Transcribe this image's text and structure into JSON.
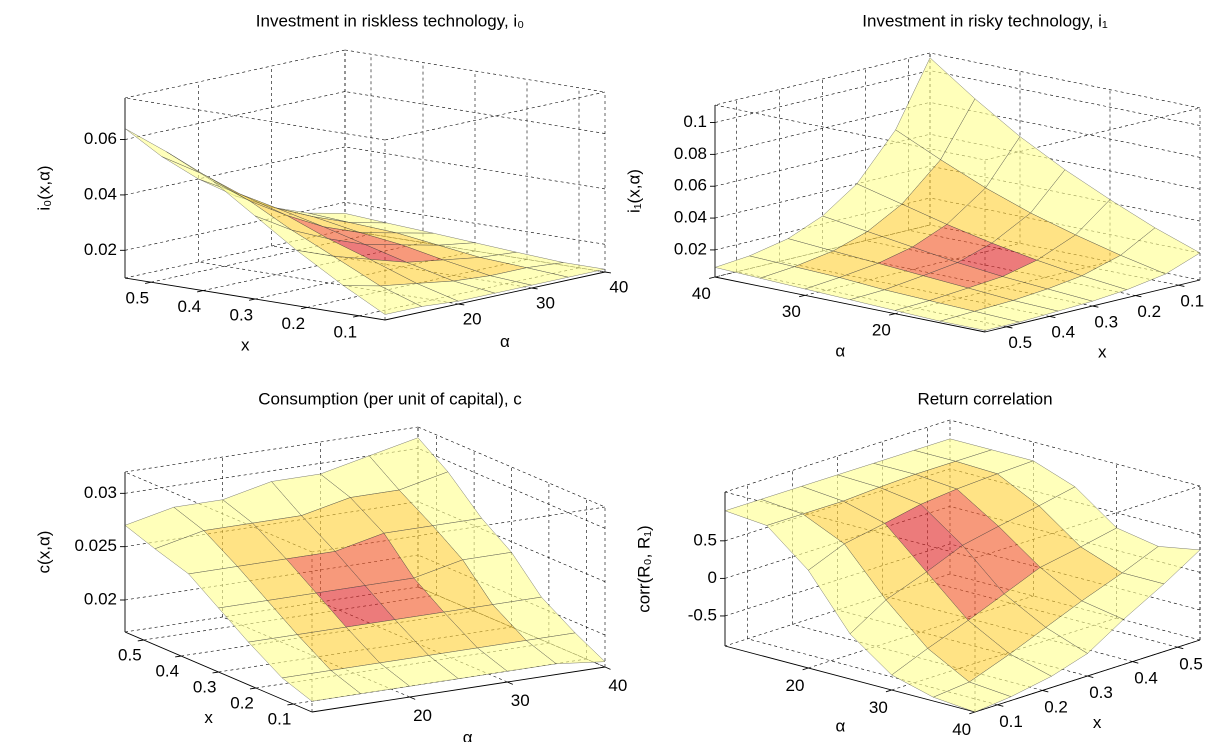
{
  "chart_data": [
    {
      "type": "surface",
      "title": "Investment in riskless technology, i₀",
      "xlabel": "x",
      "ylabel": "α",
      "zlabel": "i₀(x,α)",
      "x": [
        0.05,
        0.13,
        0.22,
        0.3,
        0.38,
        0.47,
        0.55
      ],
      "y": [
        10,
        15,
        20,
        25,
        30,
        35,
        40
      ],
      "z": [
        [
          0.012,
          0.02,
          0.03,
          0.04,
          0.05,
          0.058,
          0.064
        ],
        [
          0.012,
          0.017,
          0.025,
          0.032,
          0.04,
          0.047,
          0.051
        ],
        [
          0.011,
          0.015,
          0.021,
          0.026,
          0.032,
          0.037,
          0.04
        ],
        [
          0.011,
          0.013,
          0.017,
          0.021,
          0.025,
          0.029,
          0.031
        ],
        [
          0.011,
          0.012,
          0.015,
          0.018,
          0.02,
          0.023,
          0.024
        ],
        [
          0.011,
          0.012,
          0.013,
          0.015,
          0.017,
          0.018,
          0.019
        ],
        [
          0.011,
          0.011,
          0.012,
          0.013,
          0.014,
          0.015,
          0.016
        ]
      ],
      "xlim": [
        0.05,
        0.55
      ],
      "ylim": [
        10,
        40
      ],
      "zlim": [
        0.01,
        0.075
      ],
      "xticks": [
        0.1,
        0.2,
        0.3,
        0.4,
        0.5
      ],
      "yticks": [
        20,
        30,
        40
      ],
      "zticks": [
        0.02,
        0.04,
        0.06
      ],
      "grid": true,
      "colors": [
        "#e02a2a",
        "#f25a2a",
        "#ff9a30",
        "#ffd23a",
        "#fff060",
        "#ffff90"
      ]
    },
    {
      "type": "surface",
      "title": "Investment in risky technology, i₁",
      "xlabel": "x",
      "ylabel": "α",
      "zlabel": "i₁(x,α)",
      "x": [
        0.05,
        0.13,
        0.22,
        0.3,
        0.38,
        0.47,
        0.55
      ],
      "y": [
        10,
        15,
        20,
        25,
        30,
        35,
        40
      ],
      "z": [
        [
          0.02,
          0.012,
          0.008,
          0.006,
          0.005,
          0.004,
          0.004
        ],
        [
          0.03,
          0.018,
          0.011,
          0.008,
          0.006,
          0.005,
          0.004
        ],
        [
          0.042,
          0.025,
          0.015,
          0.01,
          0.008,
          0.006,
          0.005
        ],
        [
          0.055,
          0.033,
          0.02,
          0.013,
          0.01,
          0.007,
          0.006
        ],
        [
          0.07,
          0.043,
          0.026,
          0.017,
          0.012,
          0.009,
          0.007
        ],
        [
          0.088,
          0.055,
          0.033,
          0.021,
          0.014,
          0.01,
          0.008
        ],
        [
          0.108,
          0.068,
          0.04,
          0.025,
          0.016,
          0.011,
          0.009
        ]
      ],
      "xlim": [
        0.05,
        0.55
      ],
      "ylim": [
        10,
        40
      ],
      "zlim": [
        0.003,
        0.111
      ],
      "xticks": [
        0.1,
        0.2,
        0.3,
        0.4,
        0.5
      ],
      "yticks": [
        20,
        30,
        40
      ],
      "zticks": [
        0.02,
        0.04,
        0.06,
        0.08,
        0.1
      ],
      "grid": true,
      "colors": [
        "#e02a2a",
        "#f25a2a",
        "#ff9a30",
        "#ffd23a",
        "#fff060",
        "#ffff90"
      ]
    },
    {
      "type": "surface",
      "title": "Consumption (per unit of capital), c",
      "xlabel": "x",
      "ylabel": "α",
      "zlabel": "c(x,α)",
      "x": [
        0.05,
        0.13,
        0.22,
        0.3,
        0.38,
        0.47,
        0.55
      ],
      "y": [
        10,
        15,
        20,
        25,
        30,
        35,
        40
      ],
      "z": [
        [
          0.018,
          0.019,
          0.021,
          0.023,
          0.025,
          0.026,
          0.027
        ],
        [
          0.018,
          0.019,
          0.021,
          0.023,
          0.025,
          0.027,
          0.028
        ],
        [
          0.018,
          0.019,
          0.021,
          0.023,
          0.025,
          0.027,
          0.028
        ],
        [
          0.018,
          0.019,
          0.021,
          0.023,
          0.025,
          0.027,
          0.029
        ],
        [
          0.018,
          0.019,
          0.021,
          0.023,
          0.026,
          0.028,
          0.029
        ],
        [
          0.018,
          0.019,
          0.021,
          0.024,
          0.026,
          0.028,
          0.03
        ],
        [
          0.0175,
          0.019,
          0.021,
          0.024,
          0.026,
          0.029,
          0.031
        ]
      ],
      "xlim": [
        0.05,
        0.55
      ],
      "ylim": [
        10,
        40
      ],
      "zlim": [
        0.017,
        0.032
      ],
      "xticks": [
        0.1,
        0.2,
        0.3,
        0.4,
        0.5
      ],
      "yticks": [
        20,
        30,
        40
      ],
      "zticks": [
        0.02,
        0.025,
        0.03
      ],
      "grid": true,
      "colors": [
        "#e02a2a",
        "#f25a2a",
        "#ff9a30",
        "#ffd23a",
        "#fff060",
        "#ffff90"
      ]
    },
    {
      "type": "surface",
      "title": "Return correlation",
      "xlabel": "x",
      "ylabel": "α",
      "zlabel": "corr(R₀, R₁)",
      "x": [
        0.05,
        0.13,
        0.22,
        0.3,
        0.38,
        0.47,
        0.55
      ],
      "y": [
        10,
        15,
        20,
        25,
        30,
        35,
        40
      ],
      "z": [
        [
          0.9,
          0.9,
          0.9,
          0.9,
          0.9,
          0.9,
          0.9
        ],
        [
          0.85,
          0.85,
          0.85,
          0.88,
          0.9,
          0.9,
          0.9
        ],
        [
          0.4,
          0.6,
          0.7,
          0.8,
          0.85,
          0.88,
          0.9
        ],
        [
          -0.3,
          0,
          0.2,
          0.4,
          0.5,
          0.6,
          0.7
        ],
        [
          -0.7,
          -0.5,
          -0.3,
          -0.1,
          0.1,
          0.2,
          0.3
        ],
        [
          -0.85,
          -0.8,
          -0.6,
          -0.4,
          -0.2,
          0,
          0.2
        ],
        [
          -0.9,
          -0.85,
          -0.75,
          -0.6,
          -0.3,
          0,
          0.3
        ]
      ],
      "xlim": [
        0.05,
        0.55
      ],
      "ylim": [
        10,
        40
      ],
      "zlim": [
        -0.9,
        1.15
      ],
      "xticks": [
        0.1,
        0.2,
        0.3,
        0.4,
        0.5
      ],
      "yticks": [
        20,
        30,
        40
      ],
      "zticks": [
        -0.5,
        0,
        0.5
      ],
      "grid": true,
      "colors": [
        "#e02a2a",
        "#f25a2a",
        "#ff9a30",
        "#ffd23a",
        "#fff060",
        "#ffff90"
      ]
    }
  ]
}
